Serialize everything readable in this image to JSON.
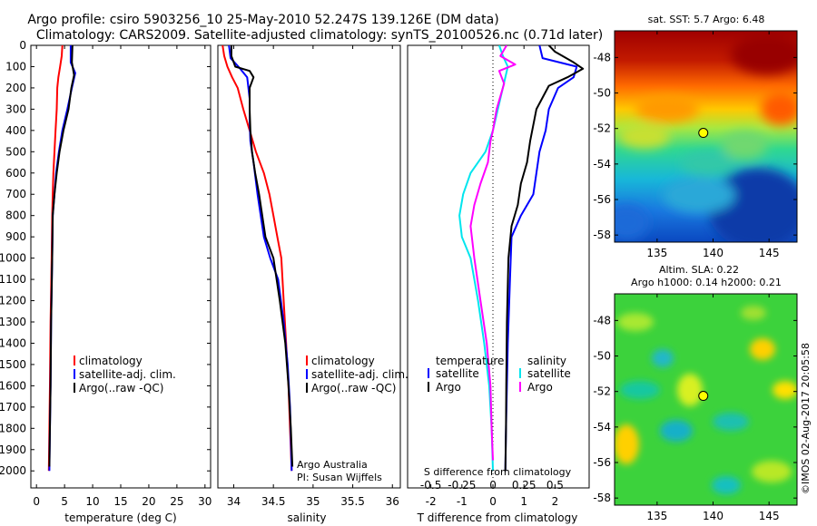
{
  "header": {
    "title_line1": "Argo profile: csiro 5903256_10 25-May-2010 52.247S 139.126E (DM data)",
    "title_line2": "Climatology: CARS2009. Satellite-adjusted climatology: synTS_20100526.nc (0.71d later)"
  },
  "colors": {
    "climatology": "#ff0000",
    "satellite": "#0000ff",
    "argo": "#000000",
    "salinity_satellite": "#00e5ee",
    "salinity_argo": "#ff00ff",
    "marker": "#ffff00"
  },
  "chart_data": [
    {
      "id": "temperature",
      "type": "line",
      "xlabel": "temperature (deg C)",
      "ylabel": "",
      "xlim": [
        -1,
        31
      ],
      "ylim": [
        2080,
        0
      ],
      "xticks": [
        0,
        5,
        10,
        15,
        20,
        25,
        30
      ],
      "yticks": [
        0,
        100,
        200,
        300,
        400,
        500,
        600,
        700,
        800,
        900,
        1000,
        1100,
        1200,
        1300,
        1400,
        1500,
        1600,
        1700,
        1800,
        1900,
        2000
      ],
      "legend_position": "lower-center",
      "legend": [
        "climatology",
        "satellite-adj. clim.",
        "Argo(..raw -QC)"
      ],
      "series": [
        {
          "name": "climatology",
          "color": "#ff0000",
          "points": [
            [
              4.6,
              0
            ],
            [
              4.5,
              50
            ],
            [
              4.2,
              100
            ],
            [
              3.9,
              150
            ],
            [
              3.7,
              200
            ],
            [
              3.6,
              300
            ],
            [
              3.4,
              400
            ],
            [
              3.2,
              500
            ],
            [
              3.0,
              600
            ],
            [
              2.9,
              700
            ],
            [
              2.8,
              800
            ],
            [
              2.7,
              1000
            ],
            [
              2.5,
              1300
            ],
            [
              2.4,
              1600
            ],
            [
              2.3,
              1800
            ],
            [
              2.2,
              2000
            ]
          ]
        },
        {
          "name": "satellite-adj. clim.",
          "color": "#0000ff",
          "points": [
            [
              6.1,
              0
            ],
            [
              6.1,
              80
            ],
            [
              6.9,
              130
            ],
            [
              6.3,
              200
            ],
            [
              5.5,
              300
            ],
            [
              4.6,
              400
            ],
            [
              4.0,
              500
            ],
            [
              3.5,
              600
            ],
            [
              3.2,
              700
            ],
            [
              2.9,
              800
            ],
            [
              2.8,
              1000
            ],
            [
              2.6,
              1300
            ],
            [
              2.5,
              1600
            ],
            [
              2.4,
              1800
            ],
            [
              2.3,
              2000
            ]
          ]
        },
        {
          "name": "Argo(..raw -QC)",
          "color": "#000000",
          "points": [
            [
              6.4,
              0
            ],
            [
              6.3,
              80
            ],
            [
              6.7,
              140
            ],
            [
              6.2,
              200
            ],
            [
              5.7,
              300
            ],
            [
              4.8,
              400
            ],
            [
              4.1,
              500
            ],
            [
              3.6,
              600
            ],
            [
              3.2,
              700
            ],
            [
              2.9,
              800
            ],
            [
              2.8,
              1000
            ],
            [
              2.6,
              1300
            ],
            [
              2.5,
              1600
            ],
            [
              2.4,
              1800
            ],
            [
              2.3,
              1980
            ]
          ]
        }
      ]
    },
    {
      "id": "salinity",
      "type": "line",
      "xlabel": "salinity",
      "xlim": [
        33.8,
        36.1
      ],
      "ylim": [
        2080,
        0
      ],
      "xticks": [
        34,
        34.5,
        35,
        35.5,
        36
      ],
      "legend_position": "lower-right",
      "legend": [
        "climatology",
        "satellite-adj. clim.",
        "Argo(..raw -QC)"
      ],
      "annotation_lines": [
        "Argo Australia",
        "PI: Susan Wijffels"
      ],
      "series": [
        {
          "name": "climatology",
          "color": "#ff0000",
          "points": [
            [
              33.86,
              0
            ],
            [
              33.88,
              50
            ],
            [
              33.92,
              100
            ],
            [
              33.98,
              150
            ],
            [
              34.05,
              200
            ],
            [
              34.12,
              300
            ],
            [
              34.2,
              400
            ],
            [
              34.28,
              500
            ],
            [
              34.38,
              600
            ],
            [
              34.45,
              700
            ],
            [
              34.5,
              800
            ],
            [
              34.55,
              900
            ],
            [
              34.6,
              1000
            ],
            [
              34.63,
              1200
            ],
            [
              34.66,
              1400
            ],
            [
              34.69,
              1600
            ],
            [
              34.71,
              1800
            ],
            [
              34.73,
              2000
            ]
          ]
        },
        {
          "name": "satellite-adj. clim.",
          "color": "#0000ff",
          "points": [
            [
              33.94,
              0
            ],
            [
              33.96,
              60
            ],
            [
              34.06,
              100
            ],
            [
              34.17,
              150
            ],
            [
              34.2,
              250
            ],
            [
              34.2,
              350
            ],
            [
              34.21,
              450
            ],
            [
              34.25,
              550
            ],
            [
              34.3,
              700
            ],
            [
              34.38,
              900
            ],
            [
              34.46,
              1000
            ],
            [
              34.56,
              1100
            ],
            [
              34.63,
              1300
            ],
            [
              34.68,
              1500
            ],
            [
              34.71,
              1700
            ],
            [
              34.72,
              1850
            ],
            [
              34.73,
              2000
            ]
          ]
        },
        {
          "name": "Argo(..raw -QC)",
          "color": "#000000",
          "points": [
            [
              33.97,
              0
            ],
            [
              33.97,
              50
            ],
            [
              34.02,
              100
            ],
            [
              34.2,
              120
            ],
            [
              34.25,
              150
            ],
            [
              34.2,
              200
            ],
            [
              34.2,
              300
            ],
            [
              34.21,
              400
            ],
            [
              34.23,
              500
            ],
            [
              34.27,
              600
            ],
            [
              34.32,
              700
            ],
            [
              34.4,
              900
            ],
            [
              34.5,
              1000
            ],
            [
              34.58,
              1200
            ],
            [
              34.65,
              1400
            ],
            [
              34.69,
              1600
            ],
            [
              34.72,
              1800
            ],
            [
              34.74,
              1980
            ]
          ]
        }
      ]
    },
    {
      "id": "difference",
      "type": "line",
      "xlabel": "T difference from climatology",
      "xlabel_top": "S difference from climatology",
      "xlim": [
        -2.75,
        3.1
      ],
      "ylim": [
        2080,
        0
      ],
      "xticks": [
        -2,
        -1,
        0,
        1,
        2
      ],
      "xticks_salinity": [
        -0.5,
        -0.25,
        0,
        0.25,
        0.5
      ],
      "xtick_labels_salinity": [
        "-0.5",
        "-0.25",
        "0",
        "0.25",
        "0.5"
      ],
      "zero_line": "dotted",
      "legend_position": "lower-center",
      "legend_headers": [
        "temperature",
        "salinity"
      ],
      "legend": [
        "satellite",
        "Argo",
        "satellite",
        "Argo"
      ],
      "series": [
        {
          "name": "satellite",
          "group": "temperature",
          "color": "#0000ff",
          "points": [
            [
              1.5,
              0
            ],
            [
              1.6,
              60
            ],
            [
              2.7,
              100
            ],
            [
              2.6,
              150
            ],
            [
              2.1,
              200
            ],
            [
              1.8,
              300
            ],
            [
              1.7,
              400
            ],
            [
              1.5,
              500
            ],
            [
              1.4,
              600
            ],
            [
              1.3,
              700
            ],
            [
              0.9,
              800
            ],
            [
              0.6,
              900
            ],
            [
              0.55,
              1100
            ],
            [
              0.48,
              1400
            ],
            [
              0.45,
              1600
            ],
            [
              0.42,
              1800
            ],
            [
              0.4,
              2000
            ]
          ]
        },
        {
          "name": "Argo",
          "group": "temperature",
          "color": "#000000",
          "points": [
            [
              1.8,
              0
            ],
            [
              2.0,
              30
            ],
            [
              2.6,
              80
            ],
            [
              2.9,
              110
            ],
            [
              2.4,
              150
            ],
            [
              1.8,
              190
            ],
            [
              1.4,
              300
            ],
            [
              1.2,
              450
            ],
            [
              1.1,
              550
            ],
            [
              0.9,
              650
            ],
            [
              0.8,
              750
            ],
            [
              0.6,
              850
            ],
            [
              0.5,
              1000
            ],
            [
              0.45,
              1300
            ],
            [
              0.43,
              1600
            ],
            [
              0.42,
              1800
            ],
            [
              0.4,
              2000
            ]
          ]
        },
        {
          "name": "satellite",
          "group": "salinity",
          "color": "#00e5ee",
          "points": [
            [
              0.05,
              0
            ],
            [
              0.08,
              50
            ],
            [
              0.12,
              100
            ],
            [
              0.1,
              150
            ],
            [
              0.06,
              250
            ],
            [
              0.0,
              400
            ],
            [
              -0.06,
              500
            ],
            [
              -0.18,
              600
            ],
            [
              -0.24,
              700
            ],
            [
              -0.27,
              800
            ],
            [
              -0.25,
              900
            ],
            [
              -0.18,
              1000
            ],
            [
              -0.12,
              1200
            ],
            [
              -0.07,
              1400
            ],
            [
              -0.03,
              1600
            ],
            [
              -0.01,
              1800
            ],
            [
              0.0,
              2000
            ]
          ]
        },
        {
          "name": "Argo",
          "group": "salinity",
          "color": "#ff00ff",
          "points": [
            [
              0.11,
              0
            ],
            [
              0.06,
              50
            ],
            [
              0.18,
              90
            ],
            [
              0.05,
              120
            ],
            [
              0.09,
              180
            ],
            [
              0.03,
              300
            ],
            [
              0.0,
              400
            ],
            [
              -0.02,
              450
            ],
            [
              -0.04,
              550
            ],
            [
              -0.1,
              650
            ],
            [
              -0.15,
              750
            ],
            [
              -0.18,
              850
            ],
            [
              -0.15,
              1000
            ],
            [
              -0.1,
              1200
            ],
            [
              -0.05,
              1400
            ],
            [
              -0.02,
              1600
            ],
            [
              -0.01,
              1800
            ],
            [
              0.0,
              1950
            ]
          ]
        }
      ]
    }
  ],
  "sst_map": {
    "title": "sat. SST: 5.7 Argo: 6.48",
    "xticks": [
      135,
      140,
      145
    ],
    "yticks": [
      -48,
      -50,
      -52,
      -54,
      -56,
      -58
    ],
    "xlim": [
      131.2,
      147.5
    ],
    "ylim": [
      -46.5,
      -58.4
    ],
    "marker": {
      "lon": 139.126,
      "lat": -52.247
    }
  },
  "sla_map": {
    "title_line1": "Altim. SLA: 0.22",
    "title_line2": "Argo h1000: 0.14 h2000: 0.21",
    "xticks": [
      135,
      140,
      145
    ],
    "yticks": [
      -48,
      -50,
      -52,
      -54,
      -56,
      -58
    ],
    "xlim": [
      131.2,
      147.5
    ],
    "ylim": [
      -46.5,
      -58.4
    ],
    "marker": {
      "lon": 139.126,
      "lat": -52.247
    }
  },
  "watermark": "©IMOS 02-Aug-2017 20:05:58"
}
